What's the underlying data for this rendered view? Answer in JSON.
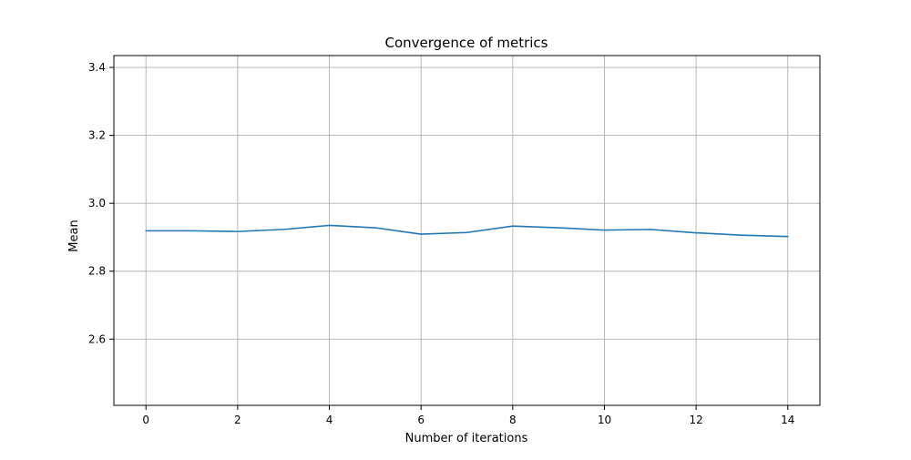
{
  "chart_data": {
    "type": "line",
    "title": "Convergence of metrics",
    "xlabel": "Number of iterations",
    "ylabel": "Mean",
    "xlim": [
      -0.7,
      14.7
    ],
    "ylim": [
      2.405,
      3.435
    ],
    "x_ticks": [
      0,
      2,
      4,
      6,
      8,
      10,
      12,
      14
    ],
    "y_ticks": [
      2.6,
      2.8,
      3.0,
      3.2,
      3.4
    ],
    "x_tick_labels": [
      "0",
      "2",
      "4",
      "6",
      "8",
      "10",
      "12",
      "14"
    ],
    "y_tick_labels": [
      "2.6",
      "2.8",
      "3.0",
      "3.2",
      "3.4"
    ],
    "grid": true,
    "legend": "none",
    "series": [
      {
        "color": "#1f77b4",
        "x": [
          0,
          1,
          2,
          3,
          4,
          5,
          6,
          7,
          8,
          9,
          10,
          11,
          12,
          13,
          14
        ],
        "values": [
          2.919,
          2.919,
          2.917,
          2.923,
          2.935,
          2.928,
          2.909,
          2.914,
          2.933,
          2.928,
          2.921,
          2.923,
          2.913,
          2.906,
          2.902
        ]
      }
    ]
  }
}
